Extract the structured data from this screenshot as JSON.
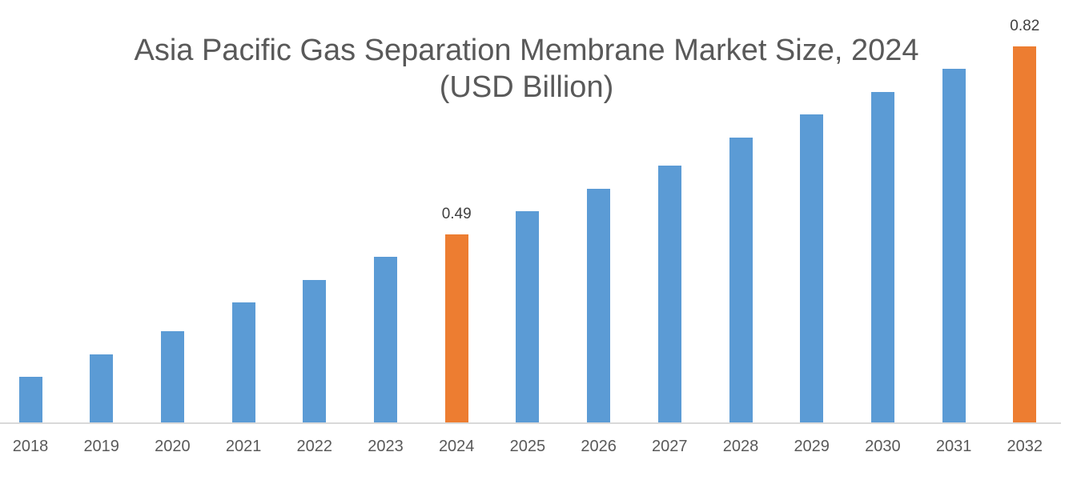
{
  "chart_data": {
    "type": "bar",
    "title": "Asia Pacific Gas Separation Membrane Market Size, 2024",
    "subtitle": "(USD Billion)",
    "xlabel": "",
    "ylabel": "",
    "categories": [
      "2018",
      "2019",
      "2020",
      "2021",
      "2022",
      "2023",
      "2024",
      "2025",
      "2026",
      "2027",
      "2028",
      "2029",
      "2030",
      "2031",
      "2032"
    ],
    "values": [
      0.24,
      0.28,
      0.32,
      0.37,
      0.41,
      0.45,
      0.49,
      0.53,
      0.57,
      0.61,
      0.66,
      0.7,
      0.74,
      0.78,
      0.82
    ],
    "highlighted": [
      "2024",
      "2032"
    ],
    "data_labels": {
      "2024": "0.49",
      "2032": "0.82"
    },
    "colors": {
      "default": "#5B9BD5",
      "highlight": "#ED7D31"
    },
    "grid": false,
    "legend": "none"
  }
}
